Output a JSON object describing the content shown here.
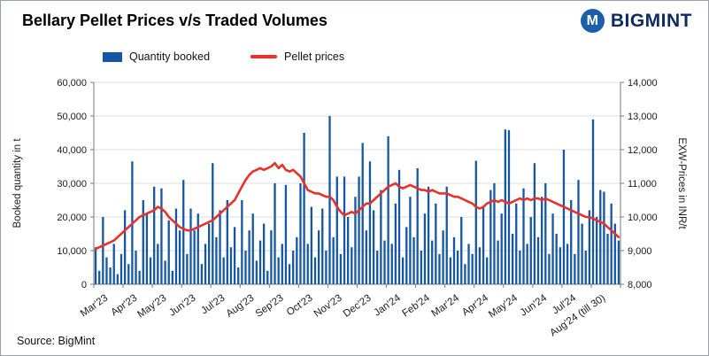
{
  "header": {
    "title": "Bellary Pellet Prices v/s Traded Volumes",
    "brand": "BIGMINT",
    "brand_icon_letter": "M"
  },
  "legend": {
    "items": [
      {
        "label": "Quantity booked",
        "type": "bar",
        "color": "#1657A5"
      },
      {
        "label": "Pellet prices",
        "type": "line",
        "color": "#E8312A"
      }
    ]
  },
  "footer": {
    "source": "Source: BigMint"
  },
  "chart_data": {
    "type": "bar",
    "subtype": "combo-bar-line",
    "title": "Bellary Pellet Prices v/s Traded Volumes",
    "grid": true,
    "legend_position": "top",
    "left_axis": {
      "label": "Booked quantity in t",
      "min": 0,
      "max": 60000,
      "step": 10000
    },
    "right_axis": {
      "label": "EXW-Prices in INR/t",
      "min": 8000,
      "max": 14000,
      "step": 1000
    },
    "months": [
      "Mar'23",
      "Apr'23",
      "May'23",
      "Jun'23",
      "Jul'23",
      "Aug'23",
      "Sep'23",
      "Oct'23",
      "Nov'23",
      "Dec'23",
      "Jan'24",
      "Feb'24",
      "Mar'24",
      "Apr'24",
      "May'24",
      "Jun'24",
      "Jul'24",
      "Aug'24 (till 30)"
    ],
    "bars_per_month": 8,
    "series": [
      {
        "name": "Quantity booked",
        "type": "bar",
        "axis": "left",
        "color": "#1657A5",
        "values": [
          11000,
          4000,
          20000,
          8000,
          5000,
          12000,
          3000,
          9000,
          22000,
          6000,
          36500,
          10000,
          4000,
          25000,
          21000,
          8000,
          29000,
          12000,
          28500,
          7000,
          19000,
          4000,
          22500,
          16000,
          31000,
          9000,
          22500,
          16000,
          21000,
          6000,
          12000,
          18000,
          36000,
          14000,
          22000,
          8000,
          25000,
          11000,
          17000,
          5000,
          25000,
          10000,
          16000,
          21000,
          7000,
          13000,
          18000,
          4000,
          16000,
          30000,
          8000,
          12000,
          29500,
          6000,
          10000,
          14000,
          30000,
          45000,
          12000,
          23000,
          8000,
          16000,
          22500,
          10000,
          50000,
          14000,
          32000,
          9000,
          32000,
          20000,
          11000,
          26000,
          32000,
          42000,
          16000,
          36500,
          22000,
          10000,
          28000,
          13000,
          44000,
          12000,
          24000,
          34000,
          8000,
          17000,
          26000,
          14000,
          34500,
          10000,
          21000,
          29000,
          13000,
          24000,
          9000,
          16000,
          29000,
          8000,
          14000,
          10000,
          20000,
          6000,
          12000,
          9000,
          36700,
          11000,
          23000,
          8000,
          28000,
          30000,
          13000,
          21000,
          46000,
          45800,
          15000,
          24000,
          10000,
          28500,
          12000,
          20000,
          36000,
          14000,
          26000,
          30000,
          9000,
          21000,
          15000,
          11000,
          40000,
          12000,
          25000,
          9000,
          31000,
          18000,
          10000,
          22000,
          49000,
          20000,
          28000,
          27500,
          15000,
          24000,
          18000,
          13000
        ]
      },
      {
        "name": "Pellet prices",
        "type": "line",
        "axis": "right",
        "color": "#E8312A",
        "values": [
          9050,
          9100,
          9150,
          9200,
          9250,
          9300,
          9400,
          9500,
          9600,
          9700,
          9800,
          9900,
          10000,
          10050,
          10100,
          10150,
          10200,
          10300,
          10250,
          10150,
          10000,
          9900,
          9800,
          9700,
          9650,
          9600,
          9600,
          9650,
          9700,
          9750,
          9800,
          9850,
          9900,
          10000,
          10100,
          10200,
          10300,
          10400,
          10500,
          10700,
          10900,
          11100,
          11250,
          11350,
          11400,
          11450,
          11400,
          11450,
          11500,
          11600,
          11450,
          11550,
          11400,
          11350,
          11400,
          11300,
          11200,
          11000,
          10800,
          10750,
          10700,
          10700,
          10650,
          10600,
          10600,
          10500,
          10300,
          10150,
          10050,
          10100,
          10150,
          10100,
          10200,
          10300,
          10400,
          10400,
          10500,
          10600,
          10700,
          10800,
          10900,
          10950,
          11000,
          10900,
          10850,
          10900,
          10950,
          10900,
          10850,
          10800,
          10800,
          10750,
          10800,
          10750,
          10700,
          10700,
          10700,
          10650,
          10600,
          10600,
          10550,
          10500,
          10450,
          10400,
          10300,
          10250,
          10300,
          10400,
          10450,
          10500,
          10450,
          10500,
          10450,
          10400,
          10450,
          10500,
          10550,
          10500,
          10550,
          10500,
          10550,
          10550,
          10500,
          10550,
          10500,
          10450,
          10400,
          10350,
          10300,
          10250,
          10200,
          10150,
          10100,
          10050,
          10000,
          10000,
          9950,
          9900,
          9850,
          9800,
          9700,
          9600,
          9500,
          9400
        ]
      }
    ]
  }
}
